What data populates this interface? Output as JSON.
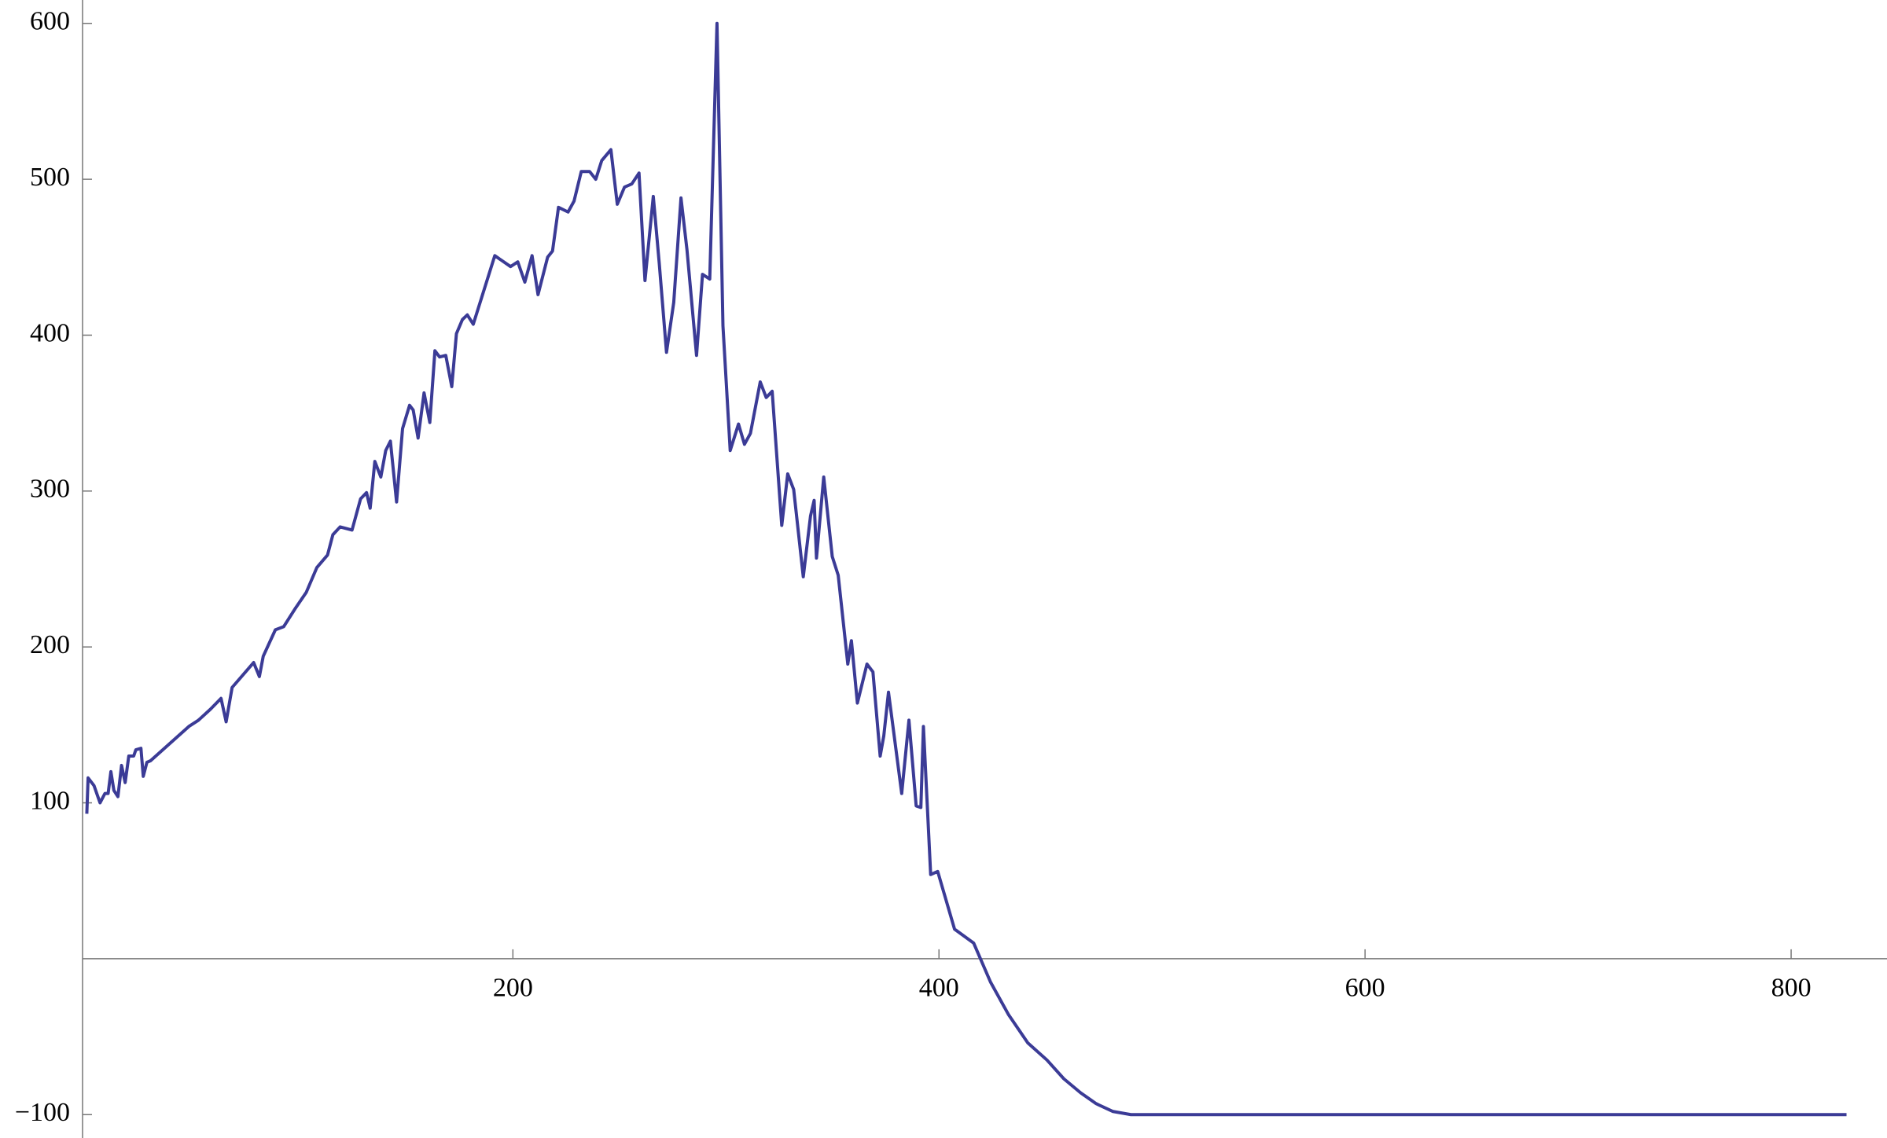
{
  "chart_data": {
    "type": "line",
    "color": "#3b3b96",
    "x": [
      0,
      0.6,
      3.4,
      6.2,
      8.5,
      10,
      11.3,
      12.7,
      14.6,
      16.3,
      18,
      19.7,
      22,
      23,
      25.4,
      26.5,
      28.2,
      29.9,
      47.9,
      52.4,
      58,
      63,
      65.4,
      68.2,
      78.3,
      81,
      82.8,
      88.5,
      92.4,
      98,
      103,
      108,
      113,
      115.5,
      118.9,
      124.5,
      128.5,
      131.3,
      133,
      135.2,
      138,
      140.3,
      142.5,
      145.4,
      148.2,
      151.5,
      153.2,
      155.5,
      158.3,
      161,
      163.4,
      165.6,
      168.5,
      171.3,
      173.5,
      176.3,
      178.6,
      181.4,
      191.5,
      198.9,
      202.3,
      205.6,
      209,
      211.8,
      216.3,
      218.6,
      221.4,
      225.9,
      228.7,
      232.1,
      236,
      238.9,
      241.7,
      246,
      249,
      252.4,
      255.8,
      259.2,
      262,
      265.9,
      268.7,
      272.1,
      275.5,
      278.9,
      281.7,
      286.2,
      289,
      292.4,
      295.8,
      298.6,
      302,
      305.9,
      308.7,
      311.5,
      316.1,
      318.9,
      321.7,
      326.2,
      329,
      331.8,
      336.3,
      339.7,
      341.4,
      342.5,
      345.9,
      349.9,
      352.7,
      357.2,
      358.9,
      361.7,
      366.2,
      369,
      372.4,
      374.1,
      376.3,
      382.5,
      385.9,
      389.3,
      391.5,
      392.7,
      396.1,
      399.4,
      407.3,
      416.3,
      424.2,
      432.7,
      441.7,
      450.7,
      458.6,
      466.5,
      473.8,
      481.7,
      490.1,
      500.3,
      826
    ],
    "values": [
      93,
      116,
      111,
      100,
      106,
      106,
      120,
      108,
      104,
      124,
      113,
      130,
      130,
      134,
      135,
      117,
      126,
      127,
      149,
      153,
      160,
      167,
      152,
      174,
      190,
      181,
      194,
      211,
      213,
      225,
      235,
      251,
      259,
      272,
      277,
      275,
      295,
      299,
      289,
      319,
      309,
      326,
      332,
      293,
      340,
      355,
      352,
      334,
      363,
      344,
      390,
      386,
      387,
      367,
      401,
      410,
      413,
      407,
      451,
      444,
      447,
      434,
      451,
      426,
      450,
      454,
      482,
      479,
      486,
      505,
      505,
      500,
      512,
      519,
      484,
      495,
      497,
      504,
      435,
      489,
      446,
      389,
      421,
      488,
      455,
      387,
      439,
      436,
      600,
      406,
      326,
      343,
      330,
      337,
      370,
      360,
      364,
      278,
      311,
      301,
      245,
      284,
      294,
      257,
      309,
      258,
      246,
      189,
      204,
      164,
      189,
      184,
      130,
      143,
      171,
      106,
      153,
      98,
      97,
      149,
      54,
      56,
      19,
      10,
      -15,
      -36,
      -54,
      -65,
      -77,
      -86,
      -93,
      -98,
      -100,
      -100,
      -100
    ],
    "xlim": [
      -2,
      845
    ],
    "ylim": [
      -115,
      615
    ],
    "xticks": [
      200,
      400,
      600,
      800
    ],
    "yticks": [
      {
        "value": -100,
        "label": "−100"
      },
      100,
      200,
      300,
      400,
      500,
      600
    ]
  }
}
